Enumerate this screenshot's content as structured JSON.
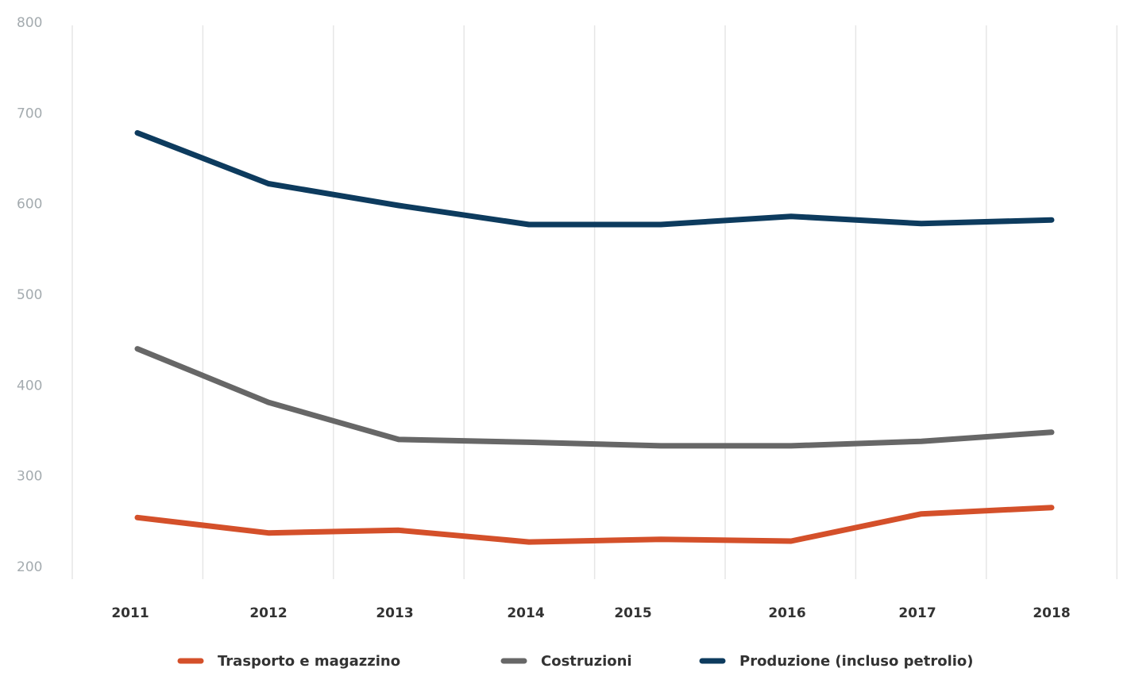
{
  "chart_data": {
    "type": "line",
    "title": "",
    "xlabel": "",
    "ylabel": "",
    "x": [
      "2011",
      "2012",
      "2013",
      "2014",
      "2015",
      "2016",
      "2017",
      "2018"
    ],
    "yticks": [
      "200",
      "300",
      "400",
      "500",
      "600",
      "700",
      "800"
    ],
    "ylim": [
      200,
      800
    ],
    "grid": "vertical",
    "legend_position": "bottom",
    "series": [
      {
        "name": "Trasporto e magazzino",
        "color": "#d4502a",
        "values": [
          254,
          237,
          240,
          227,
          230,
          228,
          258,
          265
        ]
      },
      {
        "name": "Costruzioni",
        "color": "#676767",
        "values": [
          440,
          381,
          340,
          337,
          333,
          333,
          338,
          348
        ]
      },
      {
        "name": "Produzione (incluso petrolio)",
        "color": "#0d3b5e",
        "values": [
          678,
          622,
          598,
          577,
          577,
          586,
          578,
          582
        ]
      }
    ]
  }
}
